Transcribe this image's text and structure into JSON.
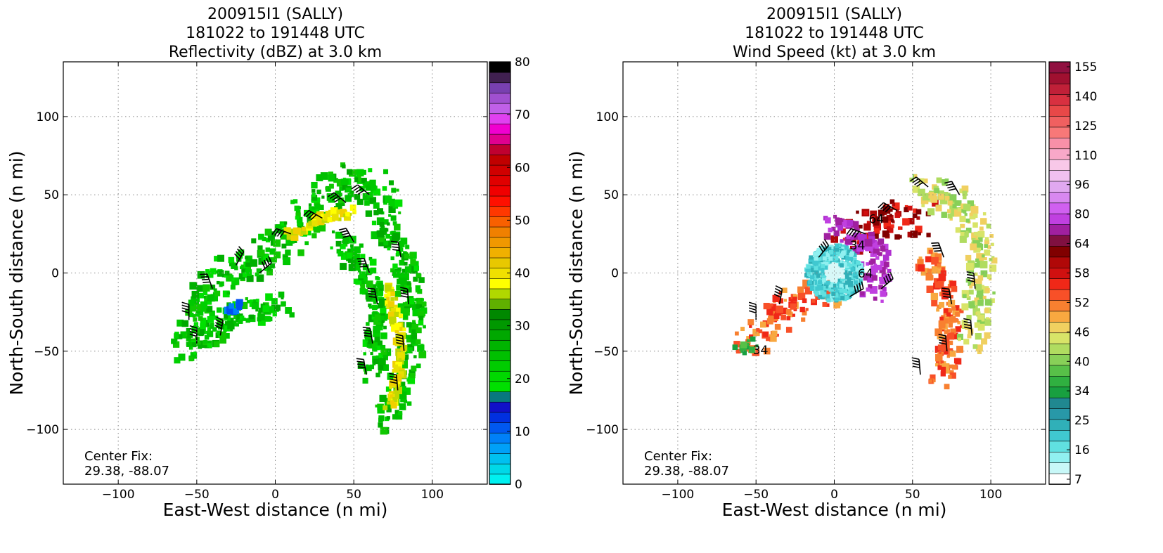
{
  "chart_data": [
    {
      "type": "radar_field",
      "title": [
        "200915I1 (SALLY)",
        "181022 to 191448 UTC",
        "Reflectivity (dBZ) at 3.0 km"
      ],
      "xlabel": "East-West distance (n mi)",
      "ylabel": "North-South distance (n mi)",
      "xlim": [
        -135,
        135
      ],
      "ylim": [
        -135,
        135
      ],
      "xticks": [
        -100,
        -50,
        0,
        50,
        100
      ],
      "yticks": [
        -100,
        -50,
        0,
        50,
        100
      ],
      "xtick_labels": [
        "−100",
        "−50",
        "0",
        "50",
        "100"
      ],
      "ytick_labels": [
        "−100",
        "−50",
        "0",
        "50",
        "100"
      ],
      "grid": true,
      "annotation": [
        "Center Fix:",
        "29.38, -88.07"
      ],
      "colorbar": {
        "ticks": [
          "0",
          "10",
          "20",
          "30",
          "40",
          "50",
          "60",
          "70",
          "80"
        ],
        "colors": [
          "#00f0f0",
          "#00d8e8",
          "#00c0f0",
          "#00a0f8",
          "#0080f8",
          "#0058f0",
          "#0030e0",
          "#1010c8",
          "#087880",
          "#00e000",
          "#00d800",
          "#00cc00",
          "#00c000",
          "#00b400",
          "#00a800",
          "#009800",
          "#008800",
          "#60b000",
          "#b0d800",
          "#ffff00",
          "#f0e000",
          "#e8c800",
          "#f0b000",
          "#f09800",
          "#f08000",
          "#f86000",
          "#ff3800",
          "#ff1000",
          "#f00000",
          "#e00000",
          "#d00000",
          "#c00000",
          "#c00030",
          "#e00090",
          "#f000d0",
          "#e040f0",
          "#c060e8",
          "#a050d0",
          "#7840b0",
          "#402050",
          "#000000"
        ]
      }
    },
    {
      "type": "radar_field",
      "title": [
        "200915I1 (SALLY)",
        "181022 to 191448 UTC",
        "Wind Speed (kt) at 3.0 km"
      ],
      "xlabel": "East-West distance (n mi)",
      "ylabel": "North-South distance (n mi)",
      "xlim": [
        -135,
        135
      ],
      "ylim": [
        -135,
        135
      ],
      "xticks": [
        -100,
        -50,
        0,
        50,
        100
      ],
      "yticks": [
        -100,
        -50,
        0,
        50,
        100
      ],
      "xtick_labels": [
        "−100",
        "−50",
        "0",
        "50",
        "100"
      ],
      "ytick_labels": [
        "−100",
        "−50",
        "0",
        "50",
        "100"
      ],
      "grid": true,
      "annotation": [
        "Center Fix:",
        "29.38, -88.07"
      ],
      "contour_labels": [
        "34",
        "64",
        "34",
        "64"
      ],
      "colorbar": {
        "ticks": [
          "7",
          "16",
          "25",
          "34",
          "40",
          "46",
          "52",
          "58",
          "64",
          "80",
          "96",
          "110",
          "125",
          "140",
          "155"
        ],
        "colors": [
          "#ffffff",
          "#c8f8f8",
          "#90f0f0",
          "#60e0e0",
          "#40c8d0",
          "#30b0b8",
          "#2898a8",
          "#208890",
          "#18a040",
          "#30b040",
          "#58c048",
          "#88d058",
          "#b0dc60",
          "#d8e468",
          "#f0d060",
          "#f8a840",
          "#f88030",
          "#f85028",
          "#f02818",
          "#d01010",
          "#b00808",
          "#800000",
          "#801040",
          "#a020a0",
          "#c040e0",
          "#d060f0",
          "#d888f0",
          "#e0a8f0",
          "#f0c0f0",
          "#f8c8e8",
          "#f8a8c8",
          "#f890a8",
          "#f87878",
          "#f06060",
          "#e84848",
          "#d83040",
          "#c02038",
          "#a01030",
          "#901040"
        ]
      },
      "barb_speed_unit": "kt"
    }
  ]
}
